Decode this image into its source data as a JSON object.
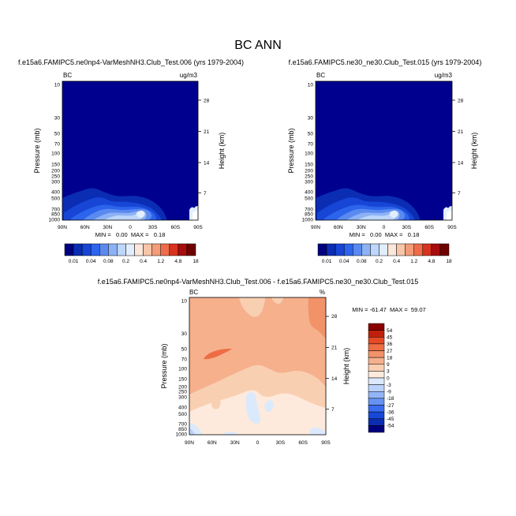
{
  "main_title": "BC ANN",
  "colors": {
    "abs_scale": [
      "#00007f",
      "#0a2db4",
      "#1746d6",
      "#2d64ec",
      "#5a8af0",
      "#8cb2f5",
      "#bdd6fb",
      "#e2eefd",
      "#fde7da",
      "#f8c5a8",
      "#f49b78",
      "#ee6c4a",
      "#d8331f",
      "#a70d0d",
      "#6f0000"
    ],
    "diff_scale": [
      "#00007f",
      "#0a2cb0",
      "#1848d8",
      "#3a6cf0",
      "#6692f3",
      "#93b5f7",
      "#bad2fa",
      "#dbe9fc",
      "#fdeadc",
      "#f9cfb2",
      "#f6b08c",
      "#f29269",
      "#ee6d44",
      "#e44a26",
      "#c0200b",
      "#8a0000"
    ],
    "field_dark": "#00008e"
  },
  "chart_data": [
    {
      "type": "contour",
      "title": "f.e15a6.FAMIPC5.ne0np4-VarMeshNH3.Club_Test.006 (yrs 1979-2004)",
      "left_label": "BC",
      "right_label": "ug/m3",
      "ylabel": "Pressure (mb)",
      "ylabel_right": "Height (km)",
      "x_ticks": [
        "90N",
        "60N",
        "30N",
        "0",
        "30S",
        "60S",
        "90S"
      ],
      "y_ticks": [
        "10",
        "30",
        "50",
        "70",
        "100",
        "150",
        "200",
        "250",
        "300",
        "400",
        "500",
        "700",
        "850",
        "1000"
      ],
      "y_values": [
        10,
        30,
        50,
        70,
        100,
        150,
        200,
        250,
        300,
        400,
        500,
        700,
        850,
        1000
      ],
      "height_ticks": [
        {
          "label": "28",
          "p": 16.5
        },
        {
          "label": "21",
          "p": 45
        },
        {
          "label": "14",
          "p": 143
        },
        {
          "label": "7",
          "p": 410
        }
      ],
      "stats": "MIN =   0.00  MAX =   0.18",
      "min": 0.0,
      "max": 0.18
    },
    {
      "type": "contour",
      "title": "f.e15a6.FAMIPC5.ne30_ne30.Club_Test.015 (yrs 1979-2004)",
      "left_label": "BC",
      "right_label": "ug/m3",
      "ylabel": "Pressure (mb)",
      "ylabel_right": "Height (km)",
      "x_ticks": [
        "90N",
        "60N",
        "30N",
        "0",
        "30S",
        "60S",
        "90S"
      ],
      "y_ticks": [
        "10",
        "30",
        "50",
        "70",
        "100",
        "150",
        "200",
        "250",
        "300",
        "400",
        "500",
        "700",
        "850",
        "1000"
      ],
      "y_values": [
        10,
        30,
        50,
        70,
        100,
        150,
        200,
        250,
        300,
        400,
        500,
        700,
        850,
        1000
      ],
      "height_ticks": [
        {
          "label": "28",
          "p": 16.5
        },
        {
          "label": "21",
          "p": 45
        },
        {
          "label": "14",
          "p": 143
        },
        {
          "label": "7",
          "p": 410
        }
      ],
      "stats": "MIN =   0.00  MAX =   0.18",
      "min": 0.0,
      "max": 0.18
    },
    {
      "type": "contour",
      "title": "f.e15a6.FAMIPC5.ne0np4-VarMeshNH3.Club_Test.006 - f.e15a6.FAMIPC5.ne30_ne30.Club_Test.015",
      "left_label": "BC",
      "right_label": "%",
      "ylabel": "Pressure (mb)",
      "ylabel_right": "Height (km)",
      "x_ticks": [
        "90N",
        "60N",
        "30N",
        "0",
        "30S",
        "60S",
        "90S"
      ],
      "y_ticks": [
        "10",
        "30",
        "50",
        "70",
        "100",
        "150",
        "200",
        "250",
        "300",
        "400",
        "500",
        "700",
        "850",
        "1000"
      ],
      "y_values": [
        10,
        30,
        50,
        70,
        100,
        150,
        200,
        250,
        300,
        400,
        500,
        700,
        850,
        1000
      ],
      "height_ticks": [
        {
          "label": "28",
          "p": 16.5
        },
        {
          "label": "21",
          "p": 45
        },
        {
          "label": "14",
          "p": 143
        },
        {
          "label": "7",
          "p": 410
        }
      ],
      "stats": "MIN = -61.47  MAX =  59.07",
      "min": -61.47,
      "max": 59.07
    }
  ],
  "abs_colorbar_labels": [
    "0.01",
    "0.04",
    "0.08",
    "0.2",
    "0.4",
    "1.2",
    "4.8",
    "18"
  ],
  "diff_colorbar_labels": [
    "54",
    "45",
    "36",
    "27",
    "18",
    "9",
    "3",
    "0",
    "-3",
    "-9",
    "-18",
    "-27",
    "-36",
    "-45",
    "-54"
  ]
}
